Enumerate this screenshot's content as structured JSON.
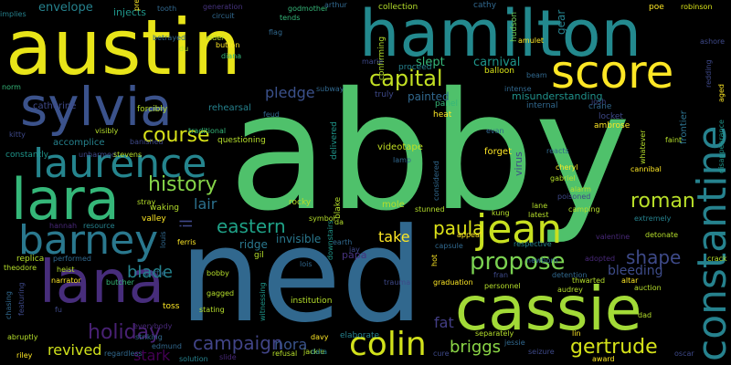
{
  "palette": {
    "background": "#000000",
    "colors": [
      "#fde725",
      "#b5de2b",
      "#6ece58",
      "#35b779",
      "#1f9e89",
      "#26828e",
      "#31688e",
      "#3e4989",
      "#482878",
      "#440154"
    ]
  },
  "words": [
    {
      "text": "abby",
      "color": "#4fc16b"
    },
    {
      "text": "ned",
      "color": "#31688e"
    },
    {
      "text": "austin",
      "color": "#e8e419"
    },
    {
      "text": "hamilton",
      "color": "#23898e"
    },
    {
      "text": "cassie",
      "color": "#a2da37"
    },
    {
      "text": "constantine",
      "color": "#26828e"
    },
    {
      "text": "score",
      "color": "#fde725"
    },
    {
      "text": "sylvia",
      "color": "#3b528b"
    },
    {
      "text": "lara",
      "color": "#35b779"
    },
    {
      "text": "lana",
      "color": "#472d7b"
    },
    {
      "text": "laurence",
      "color": "#25858e"
    },
    {
      "text": "barney",
      "color": "#2a788e"
    },
    {
      "text": "jean",
      "color": "#c8e020"
    },
    {
      "text": "colin",
      "color": "#d2e21b"
    },
    {
      "text": "propose",
      "color": "#7ad151"
    },
    {
      "text": "capital",
      "color": "#c2df23"
    },
    {
      "text": "history",
      "color": "#86d549"
    },
    {
      "text": "holiday",
      "color": "#482173"
    },
    {
      "text": "course",
      "color": "#d8e219"
    },
    {
      "text": "roman",
      "color": "#b8de29"
    },
    {
      "text": "gertrude",
      "color": "#d5e21a"
    },
    {
      "text": "paula",
      "color": "#dde318"
    },
    {
      "text": "shape",
      "color": "#3e4a89"
    },
    {
      "text": "eastern",
      "color": "#1fa187"
    },
    {
      "text": "campaign",
      "color": "#414487"
    },
    {
      "text": "briggs",
      "color": "#8bd646"
    },
    {
      "text": "blade",
      "color": "#25838e"
    },
    {
      "text": "revived",
      "color": "#d0e11c"
    },
    {
      "text": "nora",
      "color": "#3a548c"
    },
    {
      "text": "pledge",
      "color": "#3b518b"
    },
    {
      "text": "lair",
      "color": "#2c718e"
    },
    {
      "text": "take",
      "color": "#fde725"
    },
    {
      "text": "bleeding",
      "color": "#3e4c8a"
    },
    {
      "text": "fat",
      "color": "#433e85"
    },
    {
      "text": "stark",
      "color": "#440154"
    },
    {
      "text": "il",
      "color": "#3f4889"
    },
    {
      "text": "misunderstanding",
      "color": "#20928c"
    },
    {
      "text": "carnival",
      "color": "#1f968b"
    },
    {
      "text": "slept",
      "color": "#35b779"
    },
    {
      "text": "painted",
      "color": "#31688e"
    },
    {
      "text": "ridge",
      "color": "#2a788e"
    },
    {
      "text": "invisible",
      "color": "#2a788e"
    },
    {
      "text": "papa",
      "color": "#46337e"
    },
    {
      "text": "virus",
      "color": "#3e4989"
    },
    {
      "text": "mole",
      "color": "#b5de2b"
    },
    {
      "text": "videotape",
      "color": "#c2df23"
    },
    {
      "text": "forget",
      "color": "#fde725"
    },
    {
      "text": "rocky",
      "color": "#b5de2b"
    },
    {
      "text": "blake",
      "color": "#b5de2b"
    },
    {
      "text": "delivered",
      "color": "#1f968b"
    },
    {
      "text": "frontier",
      "color": "#2c718e"
    },
    {
      "text": "ambrose",
      "color": "#fde725"
    },
    {
      "text": "locket",
      "color": "#3e4989"
    },
    {
      "text": "crane",
      "color": "#31688e"
    },
    {
      "text": "josh",
      "color": "#3e4989"
    },
    {
      "text": "heat",
      "color": "#fde725"
    },
    {
      "text": "panel",
      "color": "#35b779"
    },
    {
      "text": "truly",
      "color": "#3e4989"
    },
    {
      "text": "intense",
      "color": "#31688e"
    },
    {
      "text": "internal",
      "color": "#31688e"
    },
    {
      "text": "proceed",
      "color": "#26828e"
    },
    {
      "text": "confirming",
      "color": "#b5de2b"
    },
    {
      "text": "balloon",
      "color": "#d8e219"
    },
    {
      "text": "beam",
      "color": "#31688e"
    },
    {
      "text": "collection",
      "color": "#b5de2b"
    },
    {
      "text": "hudson",
      "color": "#6ece58"
    },
    {
      "text": "gear",
      "color": "#26828e"
    },
    {
      "text": "amulet",
      "color": "#fde725"
    },
    {
      "text": "poe",
      "color": "#fde725"
    },
    {
      "text": "robinson",
      "color": "#d8e219"
    },
    {
      "text": "cathy",
      "color": "#31688e"
    },
    {
      "text": "envelope",
      "color": "#26828e"
    },
    {
      "text": "injects",
      "color": "#1f968b"
    },
    {
      "text": "tooth",
      "color": "#31688e"
    },
    {
      "text": "generation",
      "color": "#46337e"
    },
    {
      "text": "godmother",
      "color": "#35b779"
    },
    {
      "text": "arthur",
      "color": "#31688e"
    },
    {
      "text": "circuit",
      "color": "#31688e"
    },
    {
      "text": "tends",
      "color": "#35b779"
    },
    {
      "text": "flag",
      "color": "#31688e"
    },
    {
      "text": "button",
      "color": "#fde725"
    },
    {
      "text": "diana",
      "color": "#35b779"
    },
    {
      "text": "elder",
      "color": "#b5de2b"
    },
    {
      "text": "betrayed",
      "color": "#31688e"
    },
    {
      "text": "du",
      "color": "#b5de2b"
    },
    {
      "text": "implies",
      "color": "#26828e"
    },
    {
      "text": "norm",
      "color": "#35b779"
    },
    {
      "text": "catherine",
      "color": "#3e4989"
    },
    {
      "text": "forcibly",
      "color": "#b5de2b"
    },
    {
      "text": "rehearsal",
      "color": "#26828e"
    },
    {
      "text": "feud",
      "color": "#31688e"
    },
    {
      "text": "subway",
      "color": "#31688e"
    },
    {
      "text": "marie",
      "color": "#3e4989"
    },
    {
      "text": "accomplice",
      "color": "#26828e"
    },
    {
      "text": "visibly",
      "color": "#b5de2b"
    },
    {
      "text": "banished",
      "color": "#3e4989"
    },
    {
      "text": "traditional",
      "color": "#35b779"
    },
    {
      "text": "questioning",
      "color": "#b5de2b"
    },
    {
      "text": "kitty",
      "color": "#3e4989"
    },
    {
      "text": "constantly",
      "color": "#1f968b"
    },
    {
      "text": "unharmed",
      "color": "#3e4989"
    },
    {
      "text": "stevens",
      "color": "#b5de2b"
    },
    {
      "text": "waking",
      "color": "#b5de2b"
    },
    {
      "text": "stray",
      "color": "#b5de2b"
    },
    {
      "text": "valley",
      "color": "#fde725"
    },
    {
      "text": "resource",
      "color": "#26828e"
    },
    {
      "text": "hannah",
      "color": "#482878"
    },
    {
      "text": "envelope2",
      "color": "#26828e"
    },
    {
      "text": "replica",
      "color": "#b5de2b"
    },
    {
      "text": "performed",
      "color": "#31688e"
    },
    {
      "text": "theodore",
      "color": "#b5de2b"
    },
    {
      "text": "heist",
      "color": "#b5de2b"
    },
    {
      "text": "narrator",
      "color": "#fde725"
    },
    {
      "text": "butcher",
      "color": "#35b779"
    },
    {
      "text": "bottle",
      "color": "#31688e"
    },
    {
      "text": "chasing",
      "color": "#31688e"
    },
    {
      "text": "featuring",
      "color": "#3e4989"
    },
    {
      "text": "abruptly",
      "color": "#b5de2b"
    },
    {
      "text": "riley",
      "color": "#fde725"
    },
    {
      "text": "regardless",
      "color": "#31688e"
    },
    {
      "text": "striking",
      "color": "#31688e"
    },
    {
      "text": "edmund",
      "color": "#31688e"
    },
    {
      "text": "everybody",
      "color": "#482878"
    },
    {
      "text": "toss",
      "color": "#fde725"
    },
    {
      "text": "stating",
      "color": "#b5de2b"
    },
    {
      "text": "gagged",
      "color": "#b5de2b"
    },
    {
      "text": "bobby",
      "color": "#b5de2b"
    },
    {
      "text": "solution",
      "color": "#26828e"
    },
    {
      "text": "slide",
      "color": "#482878"
    },
    {
      "text": "ferris",
      "color": "#fde725"
    },
    {
      "text": "louis",
      "color": "#31688e"
    },
    {
      "text": "gil",
      "color": "#b5de2b"
    },
    {
      "text": "witnessing",
      "color": "#1f968b"
    },
    {
      "text": "institution",
      "color": "#b5de2b"
    },
    {
      "text": "lois",
      "color": "#31688e"
    },
    {
      "text": "earth",
      "color": "#31688e"
    },
    {
      "text": "jay",
      "color": "#3e4989"
    },
    {
      "text": "symbol",
      "color": "#b5de2b"
    },
    {
      "text": "jackie",
      "color": "#b5de2b"
    },
    {
      "text": "da",
      "color": "#b5de2b"
    },
    {
      "text": "data",
      "color": "#26828e"
    },
    {
      "text": "davy",
      "color": "#fde725"
    },
    {
      "text": "refusal",
      "color": "#b5de2b"
    },
    {
      "text": "elaborate",
      "color": "#26828e"
    },
    {
      "text": "trauma",
      "color": "#3e4989"
    },
    {
      "text": "graduation",
      "color": "#fde725"
    },
    {
      "text": "hot",
      "color": "#fde725"
    },
    {
      "text": "fu",
      "color": "#3e4989"
    },
    {
      "text": "cure",
      "color": "#3e4989"
    },
    {
      "text": "capsule",
      "color": "#31688e"
    },
    {
      "text": "appeal",
      "color": "#fde725"
    },
    {
      "text": "fran",
      "color": "#3e4989"
    },
    {
      "text": "personnel",
      "color": "#b5de2b"
    },
    {
      "text": "separately",
      "color": "#b5de2b"
    },
    {
      "text": "jessie",
      "color": "#31688e"
    },
    {
      "text": "seizure",
      "color": "#3e4989"
    },
    {
      "text": "stunned",
      "color": "#b5de2b"
    },
    {
      "text": "lane",
      "color": "#b5de2b"
    },
    {
      "text": "latest",
      "color": "#b5de2b"
    },
    {
      "text": "respective",
      "color": "#26828e"
    },
    {
      "text": "newborn",
      "color": "#31688e"
    },
    {
      "text": "kung",
      "color": "#b5de2b"
    },
    {
      "text": "detention",
      "color": "#31688e"
    },
    {
      "text": "audrey",
      "color": "#b5de2b"
    },
    {
      "text": "thwarted",
      "color": "#b5de2b"
    },
    {
      "text": "adopted",
      "color": "#482878"
    },
    {
      "text": "altar",
      "color": "#fde725"
    },
    {
      "text": "auction",
      "color": "#b5de2b"
    },
    {
      "text": "dad",
      "color": "#b5de2b"
    },
    {
      "text": "lin",
      "color": "#fde725"
    },
    {
      "text": "award",
      "color": "#fde725"
    },
    {
      "text": "oscar",
      "color": "#3e4989"
    },
    {
      "text": "crack",
      "color": "#b5de2b"
    },
    {
      "text": "detonate",
      "color": "#b5de2b"
    },
    {
      "text": "extremely",
      "color": "#26828e"
    },
    {
      "text": "camping",
      "color": "#b5de2b"
    },
    {
      "text": "poisoned",
      "color": "#3e4989"
    },
    {
      "text": "alarm",
      "color": "#b5de2b"
    },
    {
      "text": "gabriel",
      "color": "#b5de2b"
    },
    {
      "text": "cheryl",
      "color": "#fde725"
    },
    {
      "text": "reacts",
      "color": "#31688e"
    },
    {
      "text": "cannibal",
      "color": "#fde725"
    },
    {
      "text": "whatever",
      "color": "#b5de2b"
    },
    {
      "text": "faint",
      "color": "#b5de2b"
    },
    {
      "text": "valentine",
      "color": "#482878"
    },
    {
      "text": "ashore",
      "color": "#3e4989"
    },
    {
      "text": "redding",
      "color": "#3e4989"
    },
    {
      "text": "aged",
      "color": "#fde725"
    },
    {
      "text": "disappearance",
      "color": "#1f968b"
    },
    {
      "text": "lamp",
      "color": "#31688e"
    },
    {
      "text": "considered",
      "color": "#31688e"
    },
    {
      "text": "downstairs",
      "color": "#1f968b"
    },
    {
      "text": "pre",
      "color": "#fde725"
    },
    {
      "text": "evan",
      "color": "#31688e"
    },
    {
      "text": "tends2",
      "color": "#35b779"
    }
  ]
}
